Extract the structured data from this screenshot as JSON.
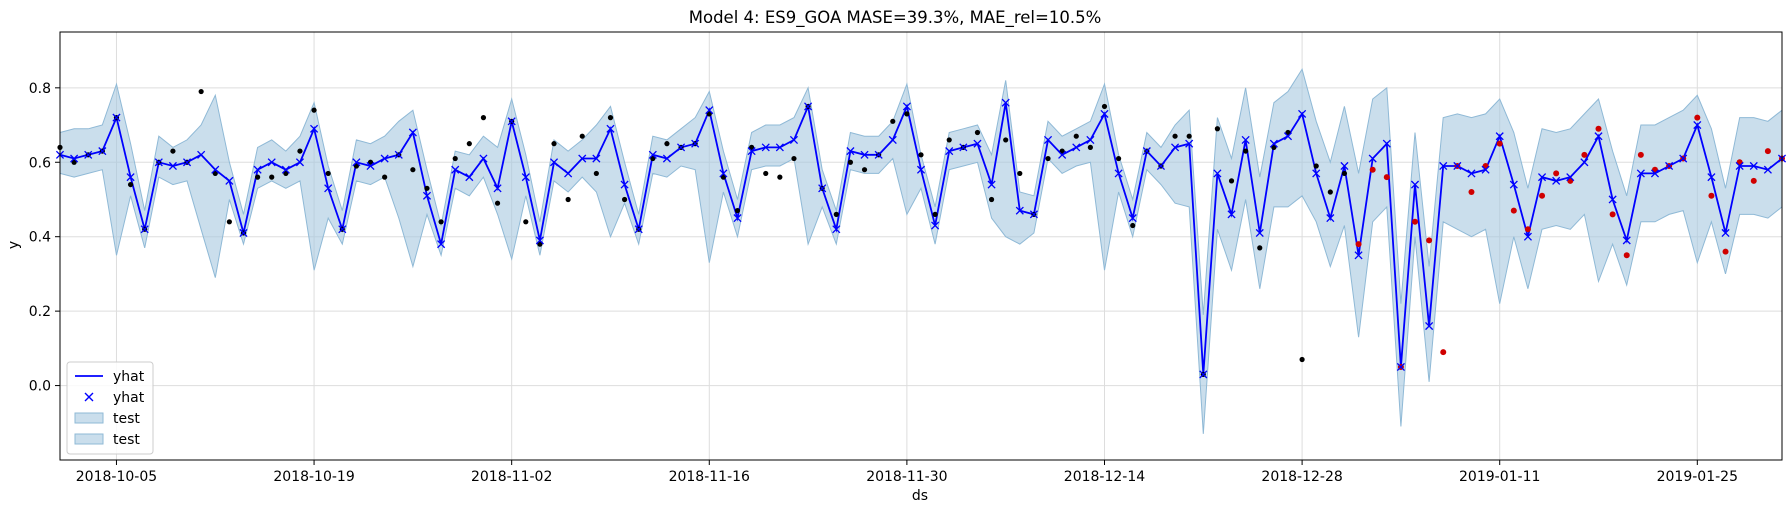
{
  "chart_data": {
    "type": "line",
    "title": "Model 4: ES9_GOA MASE=39.3%, MAE_rel=10.5%",
    "xlabel": "ds",
    "ylabel": "y",
    "xlim": [
      "2018-10-01",
      "2019-01-31"
    ],
    "ylim": [
      -0.2,
      0.95
    ],
    "grid": true,
    "legend_placement": "lower-left",
    "x_ticks": [
      "2018-10-05",
      "2018-10-19",
      "2018-11-02",
      "2018-11-16",
      "2018-11-30",
      "2018-12-14",
      "2018-12-28",
      "2019-01-11",
      "2019-01-25"
    ],
    "y_ticks": [
      0.0,
      0.2,
      0.4,
      0.6,
      0.8
    ],
    "y_tick_labels": [
      "0.0",
      "0.2",
      "0.4",
      "0.6",
      "0.8"
    ],
    "legend": [
      {
        "label": "yhat",
        "kind": "line"
      },
      {
        "label": "yhat",
        "kind": "marker"
      },
      {
        "label": "test",
        "kind": "patch"
      },
      {
        "label": "test",
        "kind": "patch"
      }
    ],
    "colors": {
      "line": "#0000ff",
      "band": "#a6c8e0",
      "band_edge": "#8fb9d6",
      "actual": "#000000",
      "test": "#d00000"
    },
    "x_start": "2018-10-01",
    "yhat": [
      0.62,
      0.61,
      0.62,
      0.63,
      0.72,
      0.56,
      0.42,
      0.6,
      0.59,
      0.6,
      0.62,
      0.58,
      0.55,
      0.41,
      0.58,
      0.6,
      0.58,
      0.6,
      0.69,
      0.53,
      0.42,
      0.6,
      0.59,
      0.61,
      0.62,
      0.68,
      0.51,
      0.38,
      0.58,
      0.56,
      0.61,
      0.53,
      0.71,
      0.56,
      0.39,
      0.6,
      0.57,
      0.61,
      0.61,
      0.69,
      0.54,
      0.42,
      0.62,
      0.61,
      0.64,
      0.65,
      0.74,
      0.57,
      0.45,
      0.63,
      0.64,
      0.64,
      0.66,
      0.75,
      0.53,
      0.42,
      0.63,
      0.62,
      0.62,
      0.66,
      0.75,
      0.58,
      0.43,
      0.63,
      0.64,
      0.65,
      0.54,
      0.76,
      0.47,
      0.46,
      0.66,
      0.62,
      0.64,
      0.66,
      0.73,
      0.57,
      0.45,
      0.63,
      0.59,
      0.64,
      0.65,
      0.03,
      0.57,
      0.46,
      0.66,
      0.41,
      0.65,
      0.67,
      0.73,
      0.57,
      0.45,
      0.59,
      0.35,
      0.61,
      0.65,
      0.05,
      0.54,
      0.16,
      0.59,
      0.59,
      0.57,
      0.58,
      0.67,
      0.54,
      0.4,
      0.56,
      0.55,
      0.56,
      0.6,
      0.67,
      0.5,
      0.39,
      0.57,
      0.57,
      0.59,
      0.61,
      0.7,
      0.56,
      0.41,
      0.59,
      0.59,
      0.58,
      0.61
    ],
    "lower": [
      0.57,
      0.56,
      0.57,
      0.58,
      0.35,
      0.51,
      0.37,
      0.56,
      0.54,
      0.55,
      0.42,
      0.29,
      0.5,
      0.38,
      0.53,
      0.55,
      0.53,
      0.55,
      0.31,
      0.45,
      0.38,
      0.55,
      0.54,
      0.56,
      0.45,
      0.32,
      0.46,
      0.35,
      0.53,
      0.51,
      0.56,
      0.46,
      0.34,
      0.51,
      0.35,
      0.55,
      0.52,
      0.56,
      0.52,
      0.4,
      0.49,
      0.38,
      0.57,
      0.56,
      0.59,
      0.58,
      0.33,
      0.52,
      0.4,
      0.58,
      0.59,
      0.59,
      0.61,
      0.38,
      0.48,
      0.38,
      0.58,
      0.57,
      0.57,
      0.61,
      0.46,
      0.53,
      0.38,
      0.58,
      0.59,
      0.6,
      0.45,
      0.4,
      0.38,
      0.41,
      0.61,
      0.57,
      0.59,
      0.6,
      0.31,
      0.52,
      0.4,
      0.58,
      0.54,
      0.49,
      0.48,
      -0.13,
      0.42,
      0.31,
      0.5,
      0.26,
      0.48,
      0.48,
      0.51,
      0.44,
      0.32,
      0.43,
      0.13,
      0.44,
      0.48,
      -0.11,
      0.4,
      0.01,
      0.44,
      0.42,
      0.4,
      0.42,
      0.22,
      0.4,
      0.26,
      0.42,
      0.43,
      0.42,
      0.46,
      0.28,
      0.38,
      0.27,
      0.44,
      0.44,
      0.46,
      0.47,
      0.33,
      0.44,
      0.3,
      0.46,
      0.46,
      0.45,
      0.48
    ],
    "upper": [
      0.68,
      0.69,
      0.69,
      0.7,
      0.81,
      0.65,
      0.47,
      0.67,
      0.64,
      0.66,
      0.7,
      0.78,
      0.6,
      0.46,
      0.64,
      0.66,
      0.63,
      0.67,
      0.76,
      0.59,
      0.47,
      0.66,
      0.65,
      0.67,
      0.71,
      0.74,
      0.58,
      0.43,
      0.63,
      0.62,
      0.67,
      0.64,
      0.77,
      0.62,
      0.44,
      0.66,
      0.63,
      0.66,
      0.7,
      0.75,
      0.6,
      0.46,
      0.67,
      0.66,
      0.69,
      0.72,
      0.79,
      0.63,
      0.5,
      0.68,
      0.7,
      0.7,
      0.72,
      0.8,
      0.58,
      0.47,
      0.68,
      0.67,
      0.67,
      0.71,
      0.81,
      0.62,
      0.48,
      0.68,
      0.69,
      0.7,
      0.62,
      0.82,
      0.52,
      0.51,
      0.71,
      0.67,
      0.69,
      0.71,
      0.81,
      0.62,
      0.5,
      0.68,
      0.64,
      0.7,
      0.74,
      0.19,
      0.72,
      0.61,
      0.8,
      0.56,
      0.76,
      0.79,
      0.85,
      0.71,
      0.6,
      0.75,
      0.57,
      0.77,
      0.8,
      0.22,
      0.68,
      0.32,
      0.72,
      0.73,
      0.72,
      0.73,
      0.77,
      0.68,
      0.53,
      0.69,
      0.68,
      0.69,
      0.73,
      0.77,
      0.63,
      0.51,
      0.7,
      0.7,
      0.72,
      0.74,
      0.78,
      0.69,
      0.53,
      0.72,
      0.72,
      0.71,
      0.74
    ],
    "actual": [
      0.64,
      0.6,
      0.62,
      0.63,
      0.72,
      0.54,
      0.42,
      0.6,
      0.63,
      0.6,
      0.79,
      0.57,
      0.44,
      0.41,
      0.56,
      0.56,
      0.57,
      0.63,
      0.74,
      0.57,
      0.42,
      0.59,
      0.6,
      0.56,
      0.62,
      0.58,
      0.53,
      0.44,
      0.61,
      0.65,
      0.72,
      0.49,
      0.71,
      0.44,
      0.38,
      0.65,
      0.5,
      0.67,
      0.57,
      0.72,
      0.5,
      0.42,
      0.61,
      0.65,
      0.64,
      0.65,
      0.73,
      0.56,
      0.47,
      0.64,
      0.57,
      0.56,
      0.61,
      0.75,
      0.53,
      0.46,
      0.6,
      0.58,
      0.62,
      0.71,
      0.73,
      0.62,
      0.46,
      0.66,
      0.64,
      0.68,
      0.5,
      0.66,
      0.57,
      0.46,
      0.61,
      0.63,
      0.67,
      0.64,
      0.75,
      0.61,
      0.43,
      0.63,
      0.59,
      0.67,
      0.67,
      0.03,
      0.69,
      0.55,
      0.63,
      0.37,
      0.64,
      0.68,
      0.07,
      0.59,
      0.52,
      0.57
    ],
    "test": [
      0.38,
      0.58,
      0.56,
      0.05,
      0.44,
      0.39,
      0.09,
      0.59,
      0.52,
      0.59,
      0.65,
      0.47,
      0.42,
      0.51,
      0.57,
      0.55,
      0.62,
      0.69,
      0.46,
      0.35,
      0.62,
      0.58,
      0.59,
      0.61,
      0.72,
      0.51,
      0.36,
      0.6,
      0.55,
      0.63,
      0.61
    ]
  }
}
